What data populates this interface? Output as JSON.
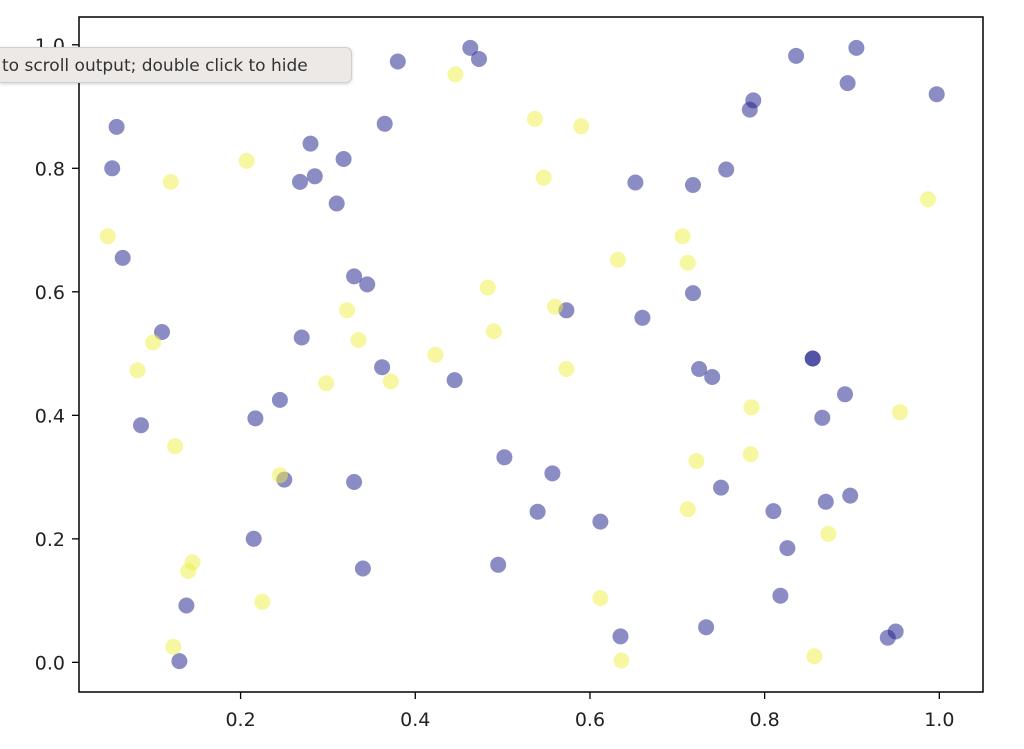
{
  "tooltip": {
    "text": "to scroll output; double click to hide"
  },
  "chart_data": {
    "type": "scatter",
    "title": "",
    "xlabel": "",
    "ylabel": "",
    "xlim": [
      0.015,
      1.05
    ],
    "ylim": [
      -0.048,
      1.045
    ],
    "xticks": [
      0.2,
      0.4,
      0.6,
      0.8,
      1.0
    ],
    "yticks": [
      0.0,
      0.2,
      0.4,
      0.6,
      0.8,
      1.0
    ],
    "xtick_labels": [
      "0.2",
      "0.4",
      "0.6",
      "0.8",
      "1.0"
    ],
    "ytick_labels": [
      "0.0",
      "0.2",
      "0.4",
      "0.6",
      "0.8",
      "1.0"
    ],
    "grid": false,
    "legend": "none",
    "series": [
      {
        "color": "#1a1a8c",
        "points": [
          [
            0.058,
            0.867
          ],
          [
            0.053,
            0.8
          ],
          [
            0.065,
            0.655
          ],
          [
            0.11,
            0.535
          ],
          [
            0.086,
            0.384
          ],
          [
            0.13,
            0.002
          ],
          [
            0.138,
            0.092
          ],
          [
            0.215,
            0.2
          ],
          [
            0.217,
            0.395
          ],
          [
            0.245,
            0.425
          ],
          [
            0.25,
            0.296
          ],
          [
            0.268,
            0.778
          ],
          [
            0.27,
            0.526
          ],
          [
            0.28,
            0.84
          ],
          [
            0.285,
            0.787
          ],
          [
            0.31,
            0.743
          ],
          [
            0.318,
            0.815
          ],
          [
            0.33,
            0.625
          ],
          [
            0.345,
            0.612
          ],
          [
            0.33,
            0.292
          ],
          [
            0.34,
            0.152
          ],
          [
            0.362,
            0.478
          ],
          [
            0.365,
            0.872
          ],
          [
            0.38,
            0.973
          ],
          [
            0.445,
            0.457
          ],
          [
            0.463,
            0.995
          ],
          [
            0.473,
            0.977
          ],
          [
            0.495,
            0.158
          ],
          [
            0.502,
            0.332
          ],
          [
            0.54,
            0.244
          ],
          [
            0.557,
            0.306
          ],
          [
            0.573,
            0.57
          ],
          [
            0.612,
            0.228
          ],
          [
            0.635,
            0.042
          ],
          [
            0.652,
            0.777
          ],
          [
            0.66,
            0.558
          ],
          [
            0.718,
            0.773
          ],
          [
            0.718,
            0.598
          ],
          [
            0.725,
            0.475
          ],
          [
            0.733,
            0.057
          ],
          [
            0.74,
            0.462
          ],
          [
            0.75,
            0.283
          ],
          [
            0.756,
            0.798
          ],
          [
            0.783,
            0.895
          ],
          [
            0.787,
            0.91
          ],
          [
            0.81,
            0.245
          ],
          [
            0.818,
            0.108
          ],
          [
            0.826,
            0.185
          ],
          [
            0.836,
            0.982
          ],
          [
            0.855,
            0.492
          ],
          [
            0.855,
            0.492
          ],
          [
            0.866,
            0.396
          ],
          [
            0.87,
            0.26
          ],
          [
            0.892,
            0.434
          ],
          [
            0.895,
            0.938
          ],
          [
            0.898,
            0.27
          ],
          [
            0.905,
            0.995
          ],
          [
            0.941,
            0.04
          ],
          [
            0.95,
            0.05
          ],
          [
            0.997,
            0.92
          ]
        ]
      },
      {
        "color": "#f0f044",
        "points": [
          [
            0.048,
            0.69
          ],
          [
            0.082,
            0.473
          ],
          [
            0.1,
            0.518
          ],
          [
            0.12,
            0.778
          ],
          [
            0.123,
            0.025
          ],
          [
            0.125,
            0.35
          ],
          [
            0.14,
            0.148
          ],
          [
            0.145,
            0.162
          ],
          [
            0.207,
            0.812
          ],
          [
            0.225,
            0.098
          ],
          [
            0.245,
            0.303
          ],
          [
            0.298,
            0.452
          ],
          [
            0.322,
            0.57
          ],
          [
            0.335,
            0.522
          ],
          [
            0.372,
            0.455
          ],
          [
            0.423,
            0.498
          ],
          [
            0.446,
            0.952
          ],
          [
            0.483,
            0.607
          ],
          [
            0.49,
            0.536
          ],
          [
            0.537,
            0.88
          ],
          [
            0.547,
            0.785
          ],
          [
            0.56,
            0.576
          ],
          [
            0.573,
            0.475
          ],
          [
            0.59,
            0.868
          ],
          [
            0.612,
            0.104
          ],
          [
            0.632,
            0.652
          ],
          [
            0.636,
            0.003
          ],
          [
            0.706,
            0.69
          ],
          [
            0.712,
            0.647
          ],
          [
            0.712,
            0.248
          ],
          [
            0.722,
            0.326
          ],
          [
            0.785,
            0.413
          ],
          [
            0.784,
            0.337
          ],
          [
            0.857,
            0.01
          ],
          [
            0.873,
            0.208
          ],
          [
            0.955,
            0.405
          ],
          [
            0.987,
            0.75
          ]
        ]
      }
    ]
  }
}
